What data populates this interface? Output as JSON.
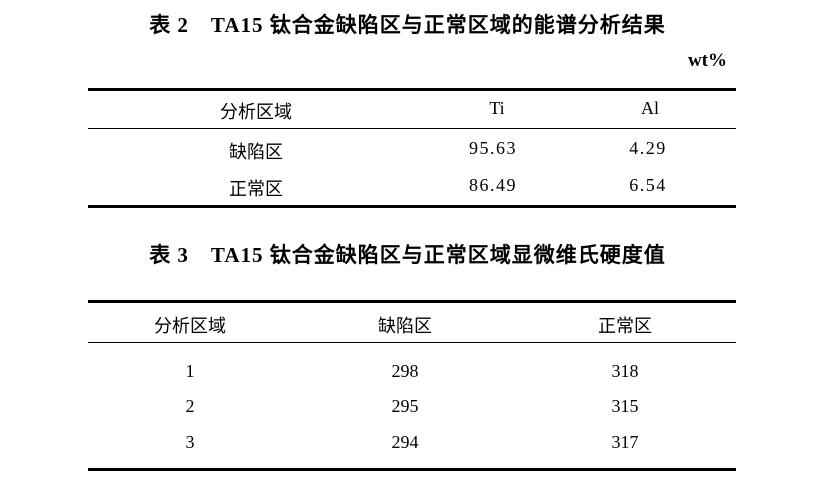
{
  "table2": {
    "title": "表 2　TA15 钛合金缺陷区与正常区域的能谱分析结果",
    "unit": "wt%",
    "headers": [
      "分析区域",
      "Ti",
      "Al"
    ],
    "rows": [
      [
        "缺陷区",
        "95.63",
        "4.29"
      ],
      [
        "正常区",
        "86.49",
        "6.54"
      ]
    ]
  },
  "table3": {
    "title": "表 3　TA15 钛合金缺陷区与正常区域显微维氏硬度值",
    "headers": [
      "分析区域",
      "缺陷区",
      "正常区"
    ],
    "rows": [
      [
        "1",
        "298",
        "318"
      ],
      [
        "2",
        "295",
        "315"
      ],
      [
        "3",
        "294",
        "317"
      ]
    ]
  }
}
